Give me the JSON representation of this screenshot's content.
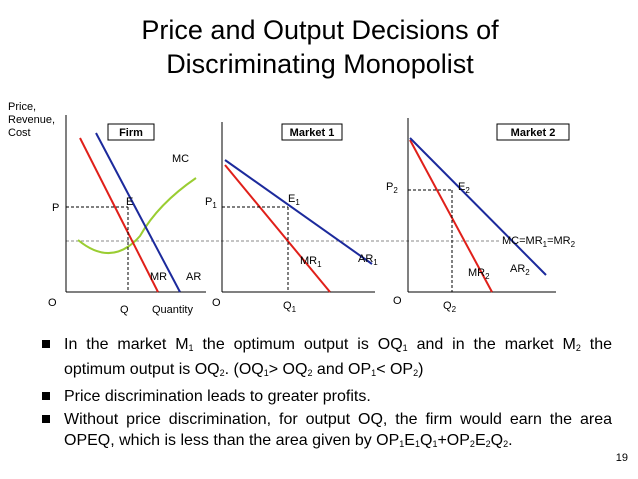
{
  "title": {
    "line1": "Price and Output Decisions of",
    "line2": "Discriminating Monopolist"
  },
  "colors": {
    "red": "#e0201a",
    "blue": "#1c2a9c",
    "green": "#9acd32",
    "guide": "#888888"
  },
  "firm": {
    "ylabel_line1": "Price,",
    "ylabel_line2": "Revenue,",
    "ylabel_line3": "Cost",
    "panel": "Firm",
    "mc": "MC",
    "p": "P",
    "e": "E",
    "mr": "MR",
    "ar": "AR",
    "origin": "O",
    "q": "Q",
    "quantity": "Quantity"
  },
  "market1": {
    "panel": "Market 1",
    "p": "P",
    "p_sub": "1",
    "e": "E",
    "e_sub": "1",
    "mr": "MR",
    "mr_sub": "1",
    "ar": "AR",
    "ar_sub": "1",
    "origin": "O",
    "q": "Q",
    "q_sub": "1"
  },
  "market2": {
    "panel": "Market 2",
    "p": "P",
    "p_sub": "2",
    "e": "E",
    "e_sub": "2",
    "mr": "MR",
    "mr_sub": "2",
    "ar": "AR",
    "ar_sub": "2",
    "origin": "O",
    "q": "Q",
    "q_sub": "2",
    "mc_eq": "MC=MR",
    "mc_eq_sub1": "1",
    "mc_eq_mid": "=MR",
    "mc_eq_sub2": "2"
  },
  "bullets": {
    "b1": {
      "a": "In the market M",
      "s1": "1",
      "b": " the optimum output is OQ",
      "s2": "1",
      "c": " and in the market M",
      "s3": "2",
      "d": " the optimum output is OQ",
      "s4": "2",
      "e": ". (OQ",
      "s5": "1",
      "f": "> OQ",
      "s6": "2",
      "g": " and OP",
      "s7": "1",
      "h": "< OP",
      "s8": "2",
      "i": ")"
    },
    "b2": "Price discrimination leads to greater profits.",
    "b3": {
      "a": "Without price discrimination, for output OQ, the firm would earn the area OPEQ, which is less than the area given by OP",
      "s1": "1",
      "b": "E",
      "s2": "1",
      "c": "Q",
      "s3": "1",
      "d": "+OP",
      "s4": "2",
      "e": "E",
      "s5": "2",
      "f": "Q",
      "s6": "2",
      "g": "."
    }
  },
  "page_number": "19"
}
